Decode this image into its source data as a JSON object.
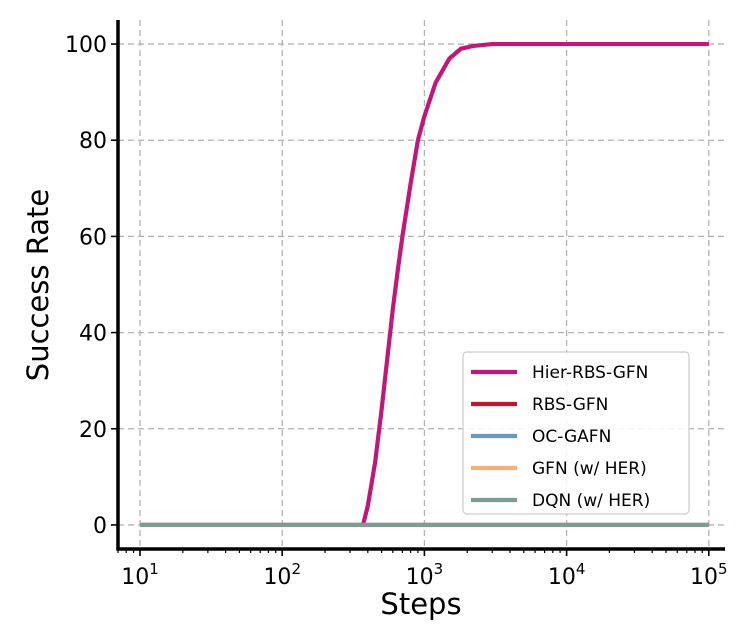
{
  "chart_data": {
    "type": "line",
    "title": "",
    "xlabel": "Steps",
    "ylabel": "Success Rate",
    "xscale": "log",
    "xlim": [
      7,
      130000
    ],
    "ylim": [
      -5,
      105
    ],
    "x_ticks": [
      {
        "value": 10,
        "base": "10",
        "exp": "1"
      },
      {
        "value": 100,
        "base": "10",
        "exp": "2"
      },
      {
        "value": 1000,
        "base": "10",
        "exp": "3"
      },
      {
        "value": 10000,
        "base": "10",
        "exp": "4"
      },
      {
        "value": 100000,
        "base": "10",
        "exp": "5"
      }
    ],
    "y_ticks": [
      "0",
      "20",
      "40",
      "60",
      "80",
      "100"
    ],
    "grid": true,
    "legend_position": "lower-right",
    "series": [
      {
        "name": "Hier-RBS-GFN",
        "color": "#c2177a",
        "x": [
          10,
          370,
          400,
          450,
          500,
          550,
          600,
          650,
          700,
          800,
          900,
          1000,
          1200,
          1500,
          1800,
          2200,
          3000,
          5000,
          100000
        ],
        "y": [
          0,
          0,
          4,
          13,
          24,
          35,
          45,
          53,
          60,
          71,
          80,
          85,
          92,
          97,
          99,
          99.6,
          100,
          100,
          100
        ]
      },
      {
        "name": "RBS-GFN",
        "color": "#c0152a",
        "x": [
          10,
          100000
        ],
        "y": [
          0,
          0
        ]
      },
      {
        "name": "OC-GAFN",
        "color": "#6a98bd",
        "x": [
          10,
          100000
        ],
        "y": [
          0,
          0
        ]
      },
      {
        "name": "GFN (w/ HER)",
        "color": "#f0b27a",
        "x": [
          10,
          100000
        ],
        "y": [
          0,
          0
        ]
      },
      {
        "name": "DQN (w/ HER)",
        "color": "#7b9e93",
        "x": [
          10,
          100000
        ],
        "y": [
          0,
          0
        ]
      }
    ]
  }
}
